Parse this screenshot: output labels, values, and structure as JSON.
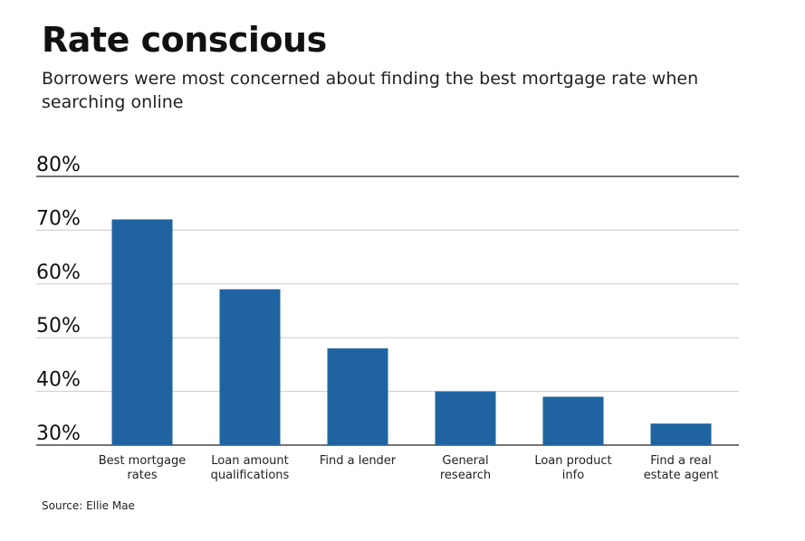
{
  "header": {
    "title": "Rate conscious",
    "subtitle": "Borrowers were most concerned about finding the best mortgage rate when searching online"
  },
  "footer": {
    "source": "Source: Ellie Mae"
  },
  "colors": {
    "bar": "#1f64a0",
    "grid": "#cccccc",
    "axis": "#222222"
  },
  "chart_data": {
    "type": "bar",
    "title": "Rate conscious",
    "categories": [
      [
        "Best mortgage",
        "rates"
      ],
      [
        "Loan amount",
        "qualifications"
      ],
      [
        "Find a lender"
      ],
      [
        "General",
        "research"
      ],
      [
        "Loan product",
        "info"
      ],
      [
        "Find a real",
        "estate agent"
      ]
    ],
    "values": [
      72,
      59,
      48,
      40,
      39,
      34
    ],
    "ylim": [
      30,
      80
    ],
    "yticks": [
      "30%",
      "40%",
      "50%",
      "60%",
      "70%",
      "80%"
    ],
    "ytick_values": [
      30,
      40,
      50,
      60,
      70,
      80
    ],
    "grid": true,
    "legend": "none"
  }
}
